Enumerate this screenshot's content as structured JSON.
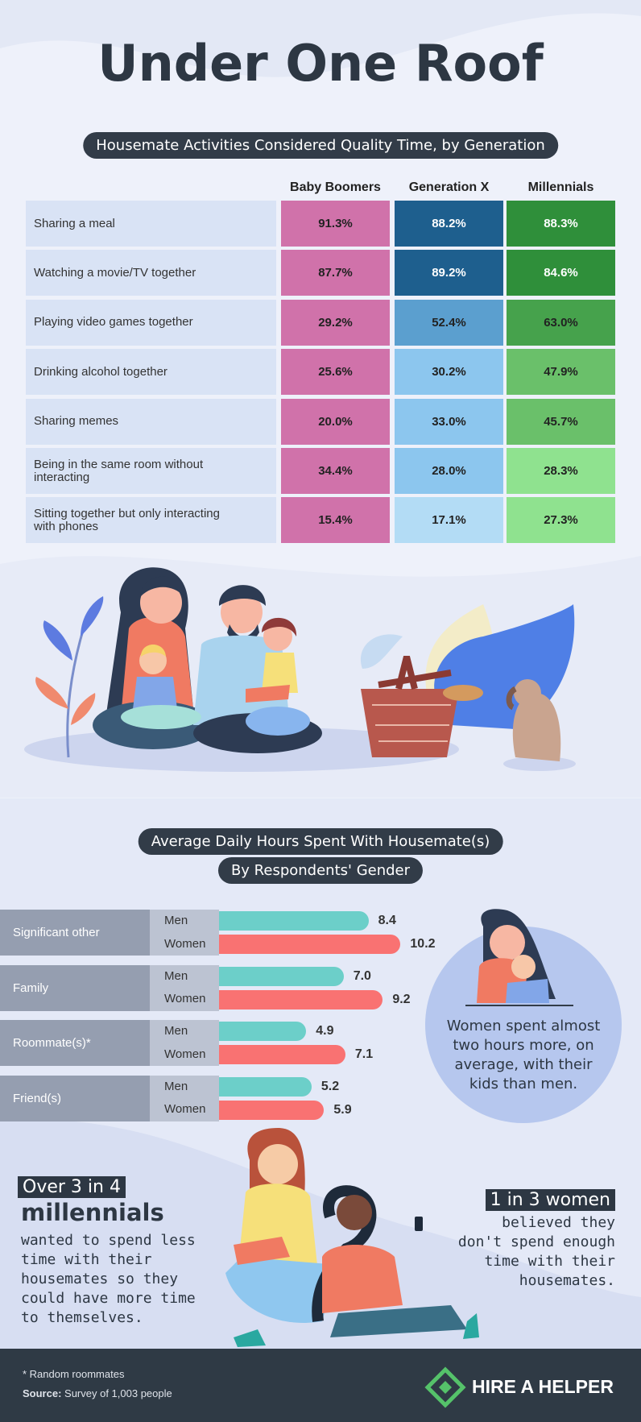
{
  "title": "Under One Roof",
  "table": {
    "title": "Housemate Activities Considered Quality Time, by Generation",
    "columns": [
      "Baby Boomers",
      "Generation X",
      "Millennials"
    ],
    "rows": [
      {
        "label": "Sharing a meal",
        "values": [
          "91.3%",
          "88.2%",
          "88.3%"
        ],
        "colors": [
          "#d072aa",
          "#1e5f8e",
          "#2f8f3a"
        ]
      },
      {
        "label": "Watching a movie/TV together",
        "values": [
          "87.7%",
          "89.2%",
          "84.6%"
        ],
        "colors": [
          "#d072aa",
          "#1e5f8e",
          "#2f8f3a"
        ]
      },
      {
        "label": "Playing video games together",
        "values": [
          "29.2%",
          "52.4%",
          "63.0%"
        ],
        "colors": [
          "#d072aa",
          "#5b9fcf",
          "#46a24c"
        ]
      },
      {
        "label": "Drinking alcohol together",
        "values": [
          "25.6%",
          "30.2%",
          "47.9%"
        ],
        "colors": [
          "#d072aa",
          "#8cc6ee",
          "#6ac06a"
        ]
      },
      {
        "label": "Sharing memes",
        "values": [
          "20.0%",
          "33.0%",
          "45.7%"
        ],
        "colors": [
          "#d072aa",
          "#8cc6ee",
          "#6ac06a"
        ]
      },
      {
        "label": "Being in the same room without interacting",
        "values": [
          "34.4%",
          "28.0%",
          "28.3%"
        ],
        "colors": [
          "#d072aa",
          "#8cc6ee",
          "#8fe28f"
        ]
      },
      {
        "label": "Sitting together but only interacting with phones",
        "values": [
          "15.4%",
          "17.1%",
          "27.3%"
        ],
        "colors": [
          "#d072aa",
          "#b3dcf5",
          "#8fe28f"
        ]
      }
    ]
  },
  "chart_data": {
    "type": "bar",
    "title": "Average Daily Hours Spent With Housemate(s)",
    "subtitle": "By Respondents' Gender",
    "categories": [
      "Significant other",
      "Family",
      "Roommate(s)*",
      "Friend(s)"
    ],
    "series": [
      {
        "name": "Men",
        "color": "#6ccfc9",
        "values": [
          8.4,
          7.0,
          4.9,
          5.2
        ],
        "value_labels": [
          "8.4",
          "7.0",
          "4.9",
          "5.2"
        ]
      },
      {
        "name": "Women",
        "color": "#f97272",
        "values": [
          10.2,
          9.2,
          7.1,
          5.9
        ],
        "value_labels": [
          "10.2",
          "9.2",
          "7.1",
          "5.9"
        ]
      }
    ]
  },
  "circle_note": "Women spent almost two hours more, on average, with their kids than men.",
  "left_callout": {
    "highlight": "Over 3 in 4",
    "headline": "millennials",
    "text": "wanted to spend less time with their housemates so they could have more time to themselves."
  },
  "right_callout": {
    "highlight": "1 in 3 women",
    "text": "believed they don't spend enough time with their housemates."
  },
  "footer": {
    "note": "* Random roommates",
    "source_label": "Source:",
    "source": "Survey of 1,003 people",
    "brand": "HIRE A HELPER"
  }
}
